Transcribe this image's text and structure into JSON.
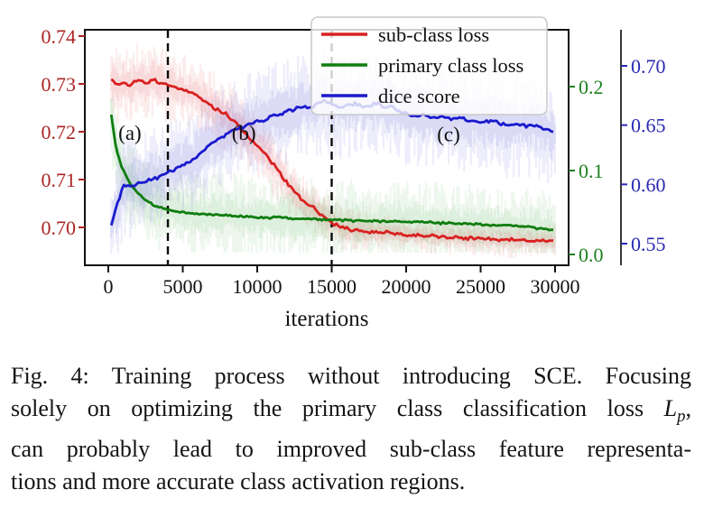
{
  "figure_label": "Fig. 4",
  "caption": {
    "lines": [
      "Fig. 4: Training process without introducing SCE. Focusing",
      "",
      "can probably lead to improved sub-class feature representa-",
      "tions and more accurate class activation regions."
    ],
    "line2": {
      "text": "solely on optimizing the primary class classification loss",
      "math_symbol": "L",
      "math_sub": "p",
      "tail": ","
    }
  },
  "chart_data": {
    "type": "line",
    "xlabel": "iterations",
    "x_ticks": [
      0,
      5000,
      10000,
      15000,
      20000,
      25000,
      30000
    ],
    "xlim": [
      -1550,
      30900
    ],
    "grid": false,
    "legend_position": "upper right",
    "axes": {
      "y_left": {
        "series": "sub-class loss",
        "color": "#ad2424",
        "ticks": [
          0.74,
          0.73,
          0.72,
          0.71,
          0.7
        ],
        "lim": [
          0.6921,
          0.7413
        ]
      },
      "y_right_inner": {
        "series": "primary class loss",
        "color": "#1e8020",
        "ticks": [
          0.2,
          0.1,
          0.0
        ],
        "lim": [
          -0.013,
          0.268
        ]
      },
      "y_right_outer": {
        "series": "dice score",
        "color": "#2a2ab2",
        "ticks": [
          0.7,
          0.65,
          0.6,
          0.55
        ],
        "lim": [
          0.5317,
          0.7304
        ]
      }
    },
    "vlines": {
      "x": [
        4000,
        15000
      ],
      "style": "dashed",
      "color": "#0a0a0a"
    },
    "annotations": [
      {
        "label": "(a)",
        "x": 1450,
        "y_left_axis": 0.7198
      },
      {
        "label": "(b)",
        "x": 9100,
        "y_left_axis": 0.7198
      },
      {
        "label": "(c)",
        "x": 22850,
        "y_left_axis": 0.7195
      }
    ],
    "series": [
      {
        "name": "sub-class loss",
        "axis": "y_left",
        "color": "#d92121",
        "band_color": "rgba(228,96,96,0.13)",
        "band_hw": 0.008,
        "band_hw_late": 0.0038,
        "wiggle": 0.00045,
        "points": [
          [
            200,
            0.731
          ],
          [
            600,
            0.7295
          ],
          [
            1000,
            0.7302
          ],
          [
            1400,
            0.7296
          ],
          [
            1800,
            0.7303
          ],
          [
            2200,
            0.7308
          ],
          [
            2600,
            0.73
          ],
          [
            3000,
            0.731
          ],
          [
            3400,
            0.7303
          ],
          [
            3800,
            0.73
          ],
          [
            4200,
            0.7295
          ],
          [
            4600,
            0.7292
          ],
          [
            5000,
            0.7288
          ],
          [
            5400,
            0.7282
          ],
          [
            5800,
            0.7282
          ],
          [
            6200,
            0.727
          ],
          [
            6600,
            0.7262
          ],
          [
            7000,
            0.7252
          ],
          [
            7400,
            0.7245
          ],
          [
            7800,
            0.7238
          ],
          [
            8200,
            0.723
          ],
          [
            8600,
            0.7218
          ],
          [
            9000,
            0.7202
          ],
          [
            9400,
            0.7188
          ],
          [
            9800,
            0.7178
          ],
          [
            10200,
            0.7164
          ],
          [
            10600,
            0.7152
          ],
          [
            11000,
            0.7136
          ],
          [
            11400,
            0.712
          ],
          [
            11800,
            0.7102
          ],
          [
            12200,
            0.7086
          ],
          [
            12600,
            0.707
          ],
          [
            13000,
            0.7058
          ],
          [
            13400,
            0.7048
          ],
          [
            13800,
            0.7042
          ],
          [
            14200,
            0.703
          ],
          [
            14600,
            0.7022
          ],
          [
            15000,
            0.701
          ],
          [
            15600,
            0.7
          ],
          [
            16400,
            0.6995
          ],
          [
            17200,
            0.6992
          ],
          [
            18000,
            0.699
          ],
          [
            19000,
            0.6989
          ],
          [
            20000,
            0.6984
          ],
          [
            21000,
            0.6984
          ],
          [
            22000,
            0.698
          ],
          [
            23000,
            0.6979
          ],
          [
            24000,
            0.6978
          ],
          [
            25000,
            0.6976
          ],
          [
            26000,
            0.6975
          ],
          [
            27000,
            0.6973
          ],
          [
            28000,
            0.6974
          ],
          [
            29000,
            0.6972
          ],
          [
            30000,
            0.6972
          ]
        ]
      },
      {
        "name": "primary class loss",
        "axis": "y_right_inner",
        "color": "#0f7d0f",
        "band_color": "rgba(105,185,105,0.13)",
        "band_hw": 0.052,
        "band_hw_late": 0.05,
        "wiggle": 0.0016,
        "clamp_min": 0.002,
        "points": [
          [
            200,
            0.167
          ],
          [
            400,
            0.14
          ],
          [
            650,
            0.118
          ],
          [
            900,
            0.104
          ],
          [
            1200,
            0.092
          ],
          [
            1500,
            0.083
          ],
          [
            1900,
            0.0745
          ],
          [
            2300,
            0.0675
          ],
          [
            2700,
            0.0625
          ],
          [
            3100,
            0.0585
          ],
          [
            3500,
            0.056
          ],
          [
            3900,
            0.054
          ],
          [
            4300,
            0.0525
          ],
          [
            4700,
            0.0512
          ],
          [
            5100,
            0.0502
          ],
          [
            5600,
            0.0492
          ],
          [
            6200,
            0.0483
          ],
          [
            6800,
            0.0475
          ],
          [
            7400,
            0.0468
          ],
          [
            8000,
            0.0462
          ],
          [
            9000,
            0.0452
          ],
          [
            10000,
            0.0445
          ],
          [
            11000,
            0.0438
          ],
          [
            12000,
            0.0432
          ],
          [
            13000,
            0.0425
          ],
          [
            14000,
            0.0418
          ],
          [
            15000,
            0.0412
          ],
          [
            16000,
            0.0405
          ],
          [
            17000,
            0.04
          ],
          [
            18000,
            0.0396
          ],
          [
            19000,
            0.0392
          ],
          [
            20000,
            0.0388
          ],
          [
            21000,
            0.0382
          ],
          [
            22000,
            0.0376
          ],
          [
            23000,
            0.037
          ],
          [
            24000,
            0.0363
          ],
          [
            25000,
            0.0356
          ],
          [
            26000,
            0.0349
          ],
          [
            27000,
            0.0341
          ],
          [
            28000,
            0.033
          ],
          [
            29000,
            0.031
          ],
          [
            30000,
            0.0288
          ]
        ]
      },
      {
        "name": "dice score",
        "axis": "y_right_outer",
        "color": "#1a1ace",
        "band_color": "rgba(118,118,222,0.15)",
        "band_hw": 0.045,
        "band_hw_late": 0.045,
        "wiggle": 0.0019,
        "points": [
          [
            200,
            0.565
          ],
          [
            400,
            0.576
          ],
          [
            700,
            0.5875
          ],
          [
            1000,
            0.5985
          ],
          [
            1300,
            0.6005
          ],
          [
            1600,
            0.5985
          ],
          [
            2000,
            0.6025
          ],
          [
            2400,
            0.6005
          ],
          [
            2800,
            0.6035
          ],
          [
            3200,
            0.6045
          ],
          [
            3600,
            0.608
          ],
          [
            4000,
            0.6115
          ],
          [
            4400,
            0.6125
          ],
          [
            4800,
            0.6155
          ],
          [
            5200,
            0.617
          ],
          [
            5600,
            0.6195
          ],
          [
            6000,
            0.625
          ],
          [
            6500,
            0.63
          ],
          [
            7000,
            0.6355
          ],
          [
            7500,
            0.639
          ],
          [
            8000,
            0.6435
          ],
          [
            8500,
            0.646
          ],
          [
            9000,
            0.6485
          ],
          [
            9500,
            0.651
          ],
          [
            10000,
            0.653
          ],
          [
            10500,
            0.6545
          ],
          [
            11000,
            0.6575
          ],
          [
            11500,
            0.659
          ],
          [
            12000,
            0.6615
          ],
          [
            12500,
            0.6635
          ],
          [
            13000,
            0.6655
          ],
          [
            13500,
            0.6645
          ],
          [
            14000,
            0.667
          ],
          [
            14500,
            0.6705
          ],
          [
            15000,
            0.668
          ],
          [
            15500,
            0.665
          ],
          [
            16000,
            0.6665
          ],
          [
            16500,
            0.668
          ],
          [
            17000,
            0.6665
          ],
          [
            17500,
            0.6665
          ],
          [
            18000,
            0.6685
          ],
          [
            18500,
            0.666
          ],
          [
            19000,
            0.6655
          ],
          [
            19500,
            0.662
          ],
          [
            20000,
            0.6595
          ],
          [
            20500,
            0.658
          ],
          [
            21000,
            0.66
          ],
          [
            21500,
            0.657
          ],
          [
            22000,
            0.6555
          ],
          [
            22500,
            0.657
          ],
          [
            23000,
            0.6555
          ],
          [
            23500,
            0.6565
          ],
          [
            24000,
            0.655
          ],
          [
            24500,
            0.6535
          ],
          [
            25000,
            0.6525
          ],
          [
            25500,
            0.6535
          ],
          [
            26000,
            0.6525
          ],
          [
            26500,
            0.651
          ],
          [
            27000,
            0.6495
          ],
          [
            27500,
            0.651
          ],
          [
            28000,
            0.6495
          ],
          [
            28500,
            0.65
          ],
          [
            29000,
            0.6475
          ],
          [
            29500,
            0.646
          ],
          [
            30000,
            0.6425
          ]
        ]
      }
    ]
  }
}
